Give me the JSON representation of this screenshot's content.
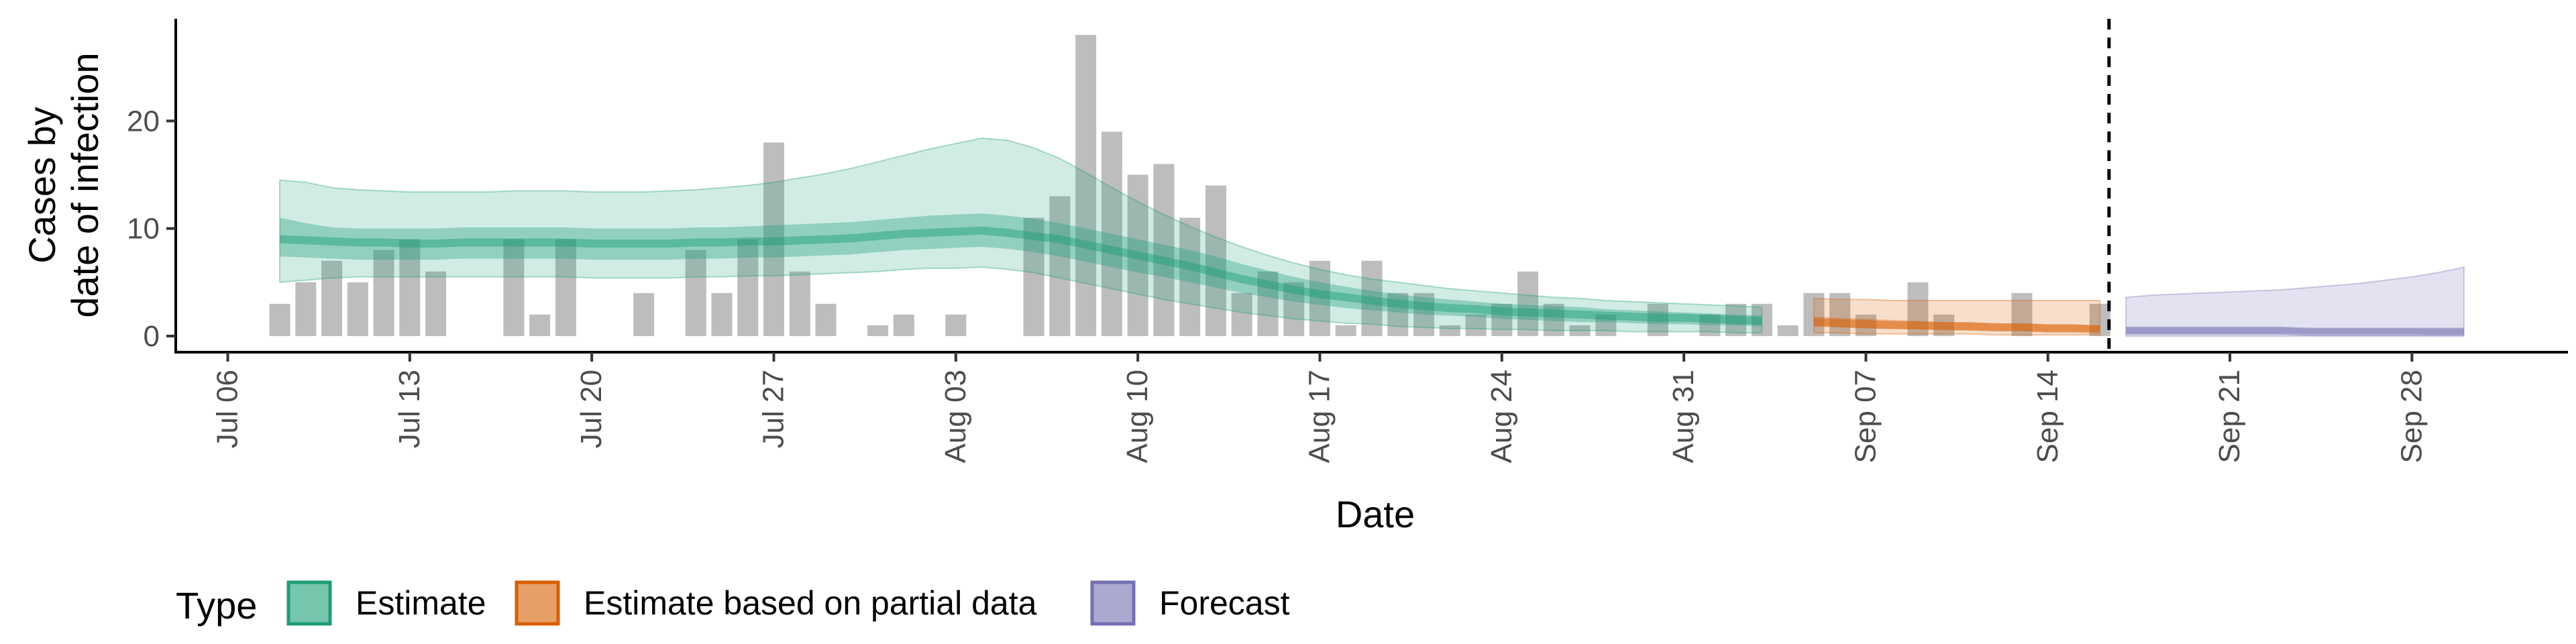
{
  "chart_data": {
    "type": "bar",
    "xlabel": "Date",
    "ylabel_lines": [
      "Cases by",
      "date of infection"
    ],
    "ylim": [
      -1.5,
      29.5
    ],
    "yticks": [
      0,
      10,
      20
    ],
    "x_axis": {
      "type": "date",
      "range": [
        "2020-07-04",
        "2020-10-04"
      ],
      "ticks": [
        "2020-07-06",
        "2020-07-13",
        "2020-07-20",
        "2020-07-27",
        "2020-08-03",
        "2020-08-10",
        "2020-08-17",
        "2020-08-24",
        "2020-08-31",
        "2020-09-07",
        "2020-09-14",
        "2020-09-21",
        "2020-09-28"
      ],
      "tick_labels": [
        "Jul 06",
        "Jul 13",
        "Jul 20",
        "Jul 27",
        "Aug 03",
        "Aug 10",
        "Aug 17",
        "Aug 24",
        "Aug 31",
        "Sep 07",
        "Sep 14",
        "Sep 21",
        "Sep 28"
      ]
    },
    "forecast_date": "2020-09-16",
    "bars": {
      "start_date": "2020-07-08",
      "values": [
        3,
        5,
        7,
        5,
        8,
        9,
        6,
        0,
        0,
        9,
        2,
        9,
        0,
        0,
        4,
        0,
        8,
        4,
        9,
        18,
        6,
        3,
        0,
        1,
        2,
        0,
        2,
        0,
        0,
        11,
        13,
        28,
        19,
        15,
        16,
        11,
        14,
        4,
        6,
        5,
        7,
        1,
        7,
        4,
        4,
        1,
        2,
        3,
        6,
        3,
        1,
        2,
        0,
        3,
        0,
        2,
        3,
        3,
        1,
        4,
        4,
        2,
        0,
        5,
        2,
        0,
        0,
        4,
        0,
        0,
        3
      ]
    },
    "series": [
      {
        "name": "Estimate",
        "color": "#1b9e77",
        "start_date": "2020-07-08",
        "median": [
          9,
          8.9,
          8.8,
          8.7,
          8.7,
          8.6,
          8.6,
          8.7,
          8.7,
          8.7,
          8.7,
          8.7,
          8.6,
          8.6,
          8.6,
          8.6,
          8.7,
          8.7,
          8.8,
          8.8,
          8.9,
          9,
          9.1,
          9.3,
          9.5,
          9.6,
          9.7,
          9.8,
          9.6,
          9.3,
          9,
          8.5,
          8,
          7.5,
          7,
          6.5,
          5.9,
          5.3,
          4.8,
          4.3,
          3.9,
          3.6,
          3.3,
          3,
          2.8,
          2.6,
          2.5,
          2.3,
          2.2,
          2.1,
          2,
          1.9,
          1.8,
          1.7,
          1.7,
          1.6,
          1.5,
          1.4
        ],
        "inner_low": [
          7.4,
          7.3,
          7.2,
          7.1,
          7.1,
          7.1,
          7.1,
          7.2,
          7.2,
          7.2,
          7.2,
          7.2,
          7.1,
          7.1,
          7.1,
          7.1,
          7.2,
          7.2,
          7.3,
          7.3,
          7.4,
          7.5,
          7.6,
          7.8,
          8,
          8.1,
          8.2,
          8.3,
          8.1,
          7.8,
          7.4,
          6.9,
          6.4,
          5.9,
          5.5,
          5,
          4.5,
          4,
          3.6,
          3.2,
          2.9,
          2.6,
          2.4,
          2.2,
          2,
          1.9,
          1.8,
          1.6,
          1.5,
          1.4,
          1.3,
          1.3,
          1.2,
          1.1,
          1.1,
          1,
          1,
          0.9
        ],
        "inner_high": [
          11,
          10.5,
          10.1,
          10,
          10,
          10,
          10,
          10.1,
          10.1,
          10.1,
          10.1,
          10.1,
          10,
          10,
          10,
          10,
          10.1,
          10.1,
          10.2,
          10.3,
          10.4,
          10.5,
          10.6,
          10.8,
          11,
          11.2,
          11.3,
          11.4,
          11.2,
          10.9,
          10.5,
          10,
          9.5,
          9,
          8.5,
          8,
          7.4,
          6.7,
          6.1,
          5.5,
          5,
          4.6,
          4.2,
          3.9,
          3.6,
          3.4,
          3.2,
          3,
          2.9,
          2.8,
          2.7,
          2.5,
          2.4,
          2.3,
          2.2,
          2.1,
          2,
          1.9
        ],
        "outer_low": [
          5,
          5.2,
          5.4,
          5.5,
          5.5,
          5.5,
          5.5,
          5.5,
          5.5,
          5.5,
          5.5,
          5.5,
          5.4,
          5.4,
          5.4,
          5.4,
          5.5,
          5.5,
          5.6,
          5.6,
          5.7,
          5.8,
          5.9,
          6,
          6.2,
          6.3,
          6.3,
          6.4,
          6.2,
          5.9,
          5.4,
          4.9,
          4.4,
          3.9,
          3.4,
          3,
          2.6,
          2.2,
          1.9,
          1.6,
          1.4,
          1.2,
          1.1,
          0.9,
          0.8,
          0.7,
          0.7,
          0.6,
          0.6,
          0.5,
          0.5,
          0.5,
          0.4,
          0.4,
          0.4,
          0.4,
          0.3,
          0.3
        ],
        "outer_high": [
          14.5,
          14.3,
          13.8,
          13.6,
          13.5,
          13.4,
          13.4,
          13.4,
          13.4,
          13.5,
          13.5,
          13.5,
          13.4,
          13.4,
          13.4,
          13.5,
          13.6,
          13.8,
          14,
          14.3,
          14.7,
          15.1,
          15.6,
          16.2,
          16.8,
          17.4,
          17.9,
          18.4,
          18.2,
          17.5,
          16.5,
          15.2,
          13.8,
          12.5,
          11.3,
          10.2,
          9.2,
          8.3,
          7.5,
          6.8,
          6.2,
          5.7,
          5.3,
          5,
          4.7,
          4.4,
          4.2,
          4,
          3.8,
          3.6,
          3.5,
          3.3,
          3.2,
          3.1,
          3,
          2.9,
          2.8,
          2.7
        ]
      },
      {
        "name": "Estimate based on partial data",
        "color": "#d95f02",
        "start_date": "2020-09-05",
        "median": [
          1.3,
          1.2,
          1.1,
          1,
          1,
          0.9,
          0.9,
          0.8,
          0.8,
          0.7,
          0.7,
          0.6
        ],
        "inner_low": [
          0.9,
          0.8,
          0.7,
          0.7,
          0.6,
          0.6,
          0.5,
          0.5,
          0.5,
          0.4,
          0.4,
          0.4
        ],
        "inner_high": [
          1.8,
          1.7,
          1.6,
          1.5,
          1.4,
          1.3,
          1.3,
          1.2,
          1.2,
          1.1,
          1.1,
          1
        ],
        "outer_low": [
          0.3,
          0.3,
          0.2,
          0.2,
          0.2,
          0.2,
          0.2,
          0.1,
          0.1,
          0.1,
          0.1,
          0.1
        ],
        "outer_high": [
          3.5,
          3.4,
          3.4,
          3.3,
          3.3,
          3.3,
          3.3,
          3.3,
          3.3,
          3.3,
          3.3,
          3.3
        ]
      },
      {
        "name": "Forecast",
        "color": "#7570b3",
        "start_date": "2020-09-17",
        "median": [
          0.5,
          0.5,
          0.5,
          0.5,
          0.5,
          0.5,
          0.5,
          0.4,
          0.4,
          0.4,
          0.4,
          0.4,
          0.4,
          0.4
        ],
        "inner_low": [
          0.2,
          0.2,
          0.2,
          0.2,
          0.2,
          0.2,
          0.2,
          0.2,
          0.2,
          0.2,
          0.2,
          0.2,
          0.1,
          0.1
        ],
        "inner_high": [
          0.8,
          0.8,
          0.8,
          0.8,
          0.8,
          0.8,
          0.8,
          0.7,
          0.7,
          0.7,
          0.7,
          0.7,
          0.7,
          0.7
        ],
        "outer_low": [
          0,
          0,
          0,
          0,
          0,
          0,
          0,
          0,
          0,
          0,
          0,
          0,
          0,
          0
        ],
        "outer_high": [
          3.6,
          3.8,
          3.9,
          4,
          4.1,
          4.2,
          4.3,
          4.5,
          4.7,
          4.9,
          5.2,
          5.5,
          5.9,
          6.4
        ]
      }
    ],
    "legend": {
      "title": "Type",
      "position": "bottom",
      "items": [
        "Estimate",
        "Estimate based on partial data",
        "Forecast"
      ]
    },
    "grid": false
  }
}
